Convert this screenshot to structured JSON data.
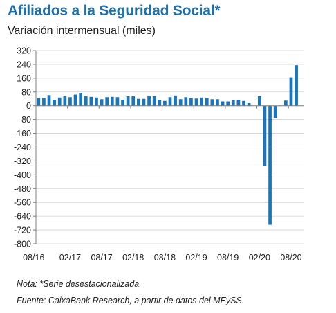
{
  "header": {
    "title": "Afiliados a la Seguridad Social*",
    "subtitle": "Variación intermensual (miles)"
  },
  "notes": {
    "nota": "Nota: *Serie desestacionalizada.",
    "fuente": "Fuente:  CaixaBank Research, a partir de datos del MEySS."
  },
  "colors": {
    "bar": "#1b75bb",
    "grid": "#d0d0d0",
    "axis": "#7f7f7f"
  },
  "chart_data": {
    "type": "bar",
    "title": "Afiliados a la Seguridad Social*",
    "subtitle": "Variación intermensual (miles)",
    "xlabel": "",
    "ylabel": "",
    "ylim": [
      -800,
      320
    ],
    "yticks": [
      320,
      240,
      160,
      80,
      0,
      -80,
      -160,
      -240,
      -320,
      -400,
      -480,
      -560,
      -640,
      -720,
      -800
    ],
    "xtick_labels": [
      "08/16",
      "02/17",
      "08/17",
      "02/18",
      "08/18",
      "02/19",
      "08/19",
      "02/20",
      "08/20"
    ],
    "grid": true,
    "legend": "none",
    "categories": [
      "08/16",
      "09/16",
      "10/16",
      "11/16",
      "12/16",
      "01/17",
      "02/17",
      "03/17",
      "04/17",
      "05/17",
      "06/17",
      "07/17",
      "08/17",
      "09/17",
      "10/17",
      "11/17",
      "12/17",
      "01/18",
      "02/18",
      "03/18",
      "04/18",
      "05/18",
      "06/18",
      "07/18",
      "08/18",
      "09/18",
      "10/18",
      "11/18",
      "12/18",
      "01/19",
      "02/19",
      "03/19",
      "04/19",
      "05/19",
      "06/19",
      "07/19",
      "08/19",
      "09/19",
      "10/19",
      "11/19",
      "12/19",
      "01/20",
      "02/20",
      "03/20",
      "04/20",
      "05/20",
      "06/20",
      "07/20",
      "08/20",
      "09/20",
      "10/20"
    ],
    "values": [
      45,
      45,
      62,
      35,
      48,
      55,
      50,
      65,
      75,
      55,
      52,
      48,
      38,
      50,
      52,
      50,
      35,
      55,
      55,
      40,
      40,
      58,
      55,
      35,
      28,
      50,
      60,
      38,
      50,
      45,
      42,
      48,
      45,
      38,
      38,
      25,
      25,
      32,
      35,
      28,
      15,
      0,
      55,
      -350,
      -690,
      -70,
      0,
      30,
      165,
      235,
      0
    ]
  }
}
